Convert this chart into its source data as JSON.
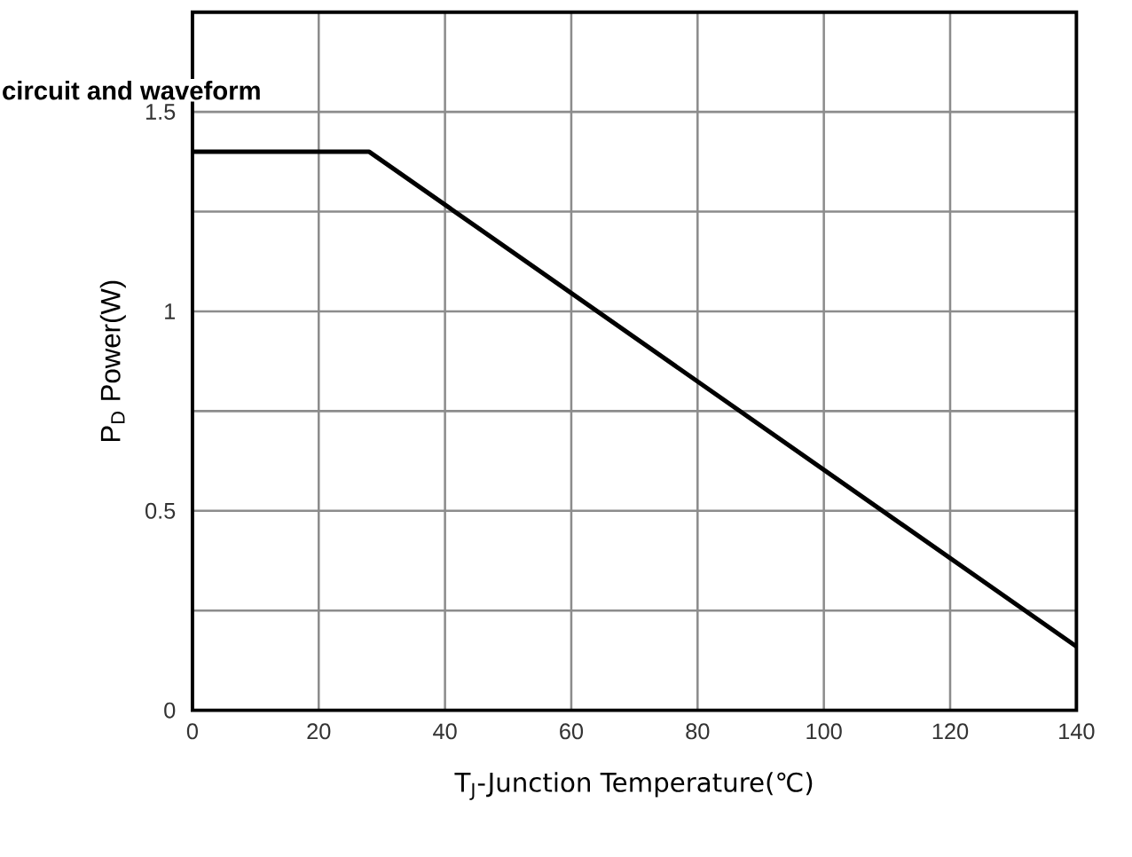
{
  "chart_data": {
    "type": "line",
    "title": "circuit and waveform",
    "xlabel": "T$_{J}$-Junction Temperature(℃)",
    "ylabel": "P$_{D}$  Power(W)",
    "x": [
      0,
      28,
      140
    ],
    "series": [
      {
        "color": "#000000",
        "values": [
          1.4,
          1.4,
          0.16
        ]
      }
    ],
    "xlim": [
      0,
      140
    ],
    "xticks": [
      0,
      20,
      40,
      60,
      80,
      100,
      120,
      140
    ],
    "ylim": [
      0,
      1.75
    ],
    "yticks": [
      0,
      {
        "value": 0.25,
        "label": null
      },
      0.5,
      {
        "value": 0.75,
        "label": null
      },
      1,
      {
        "value": 1.25,
        "label": null
      },
      1.5,
      {
        "value": 1.75,
        "label": null
      }
    ],
    "grid": true,
    "marker": "none",
    "line_style": "solid"
  }
}
